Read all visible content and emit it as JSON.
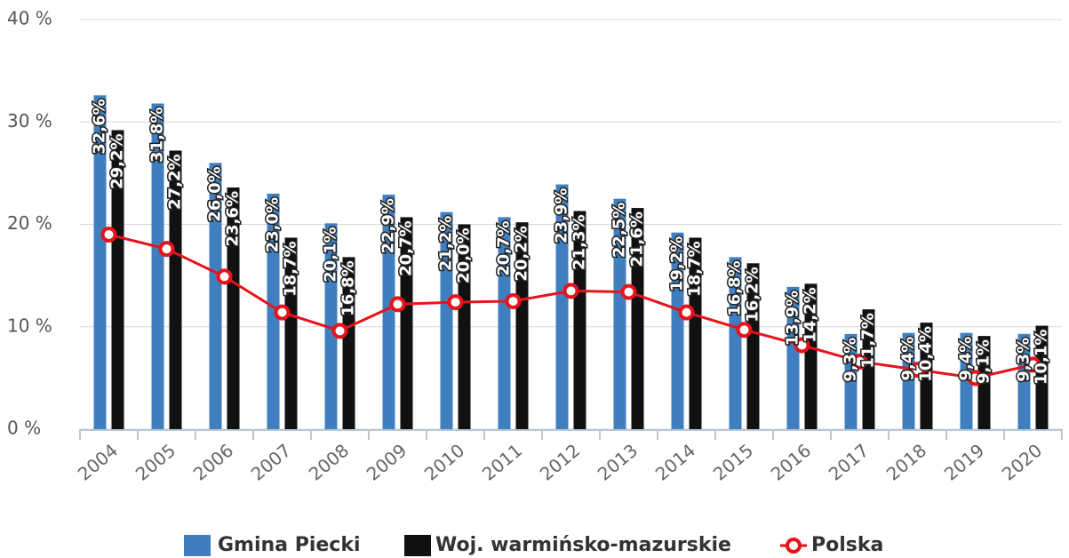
{
  "chart_data": {
    "type": "bar",
    "categories": [
      "2004",
      "2005",
      "2006",
      "2007",
      "2008",
      "2009",
      "2010",
      "2011",
      "2012",
      "2013",
      "2014",
      "2015",
      "2016",
      "2017",
      "2018",
      "2019",
      "2020"
    ],
    "series": [
      {
        "name": "Gmina Piecki",
        "color": "#3f7fbf",
        "values": [
          32.6,
          31.8,
          26.0,
          23.0,
          20.1,
          22.9,
          21.2,
          20.7,
          23.9,
          22.5,
          19.2,
          16.8,
          13.9,
          9.3,
          9.4,
          9.4,
          9.3
        ],
        "value_labels": [
          "32,6%",
          "31,8%",
          "26,0%",
          "23,0%",
          "20,1%",
          "22,9%",
          "21,2%",
          "20,7%",
          "23,9%",
          "22,5%",
          "19,2%",
          "16,8%",
          "13,9%",
          "9,3%",
          "9,4%",
          "9,4%",
          "9,3%"
        ]
      },
      {
        "name": "Woj. warmińsko-mazurskie",
        "color": "#111111",
        "values": [
          29.2,
          27.2,
          23.6,
          18.7,
          16.8,
          20.7,
          20.0,
          20.2,
          21.3,
          21.6,
          18.7,
          16.2,
          14.2,
          11.7,
          10.4,
          9.1,
          10.1
        ],
        "value_labels": [
          "29,2%",
          "27,2%",
          "23,6%",
          "18,7%",
          "16,8%",
          "20,7%",
          "20,0%",
          "20,2%",
          "21,3%",
          "21,6%",
          "18,7%",
          "16,2%",
          "14,2%",
          "11,7%",
          "10,4%",
          "9,1%",
          "10,1%"
        ]
      },
      {
        "name": "Polska",
        "type": "line",
        "color": "#e8121a",
        "values": [
          19.0,
          17.6,
          14.9,
          11.4,
          9.6,
          12.2,
          12.4,
          12.5,
          13.5,
          13.4,
          11.4,
          9.7,
          8.2,
          6.6,
          5.8,
          5.0,
          6.3
        ]
      }
    ],
    "ylim": [
      0,
      40
    ],
    "yticks": [
      {
        "value": 0,
        "label": "0 %"
      },
      {
        "value": 10,
        "label": "10 %"
      },
      {
        "value": 20,
        "label": "20 %"
      },
      {
        "value": 30,
        "label": "30 %"
      },
      {
        "value": 40,
        "label": "40 %"
      }
    ],
    "grid": true,
    "legend": "bottom"
  }
}
